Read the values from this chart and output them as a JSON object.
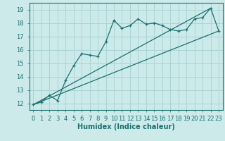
{
  "title": "",
  "xlabel": "Humidex (Indice chaleur)",
  "bg_color": "#cceaea",
  "grid_color": "#aad4d4",
  "line_color": "#1a7070",
  "spine_color": "#1a7070",
  "xlim": [
    -0.5,
    23.5
  ],
  "ylim": [
    11.5,
    19.5
  ],
  "xticks": [
    0,
    1,
    2,
    3,
    4,
    5,
    6,
    7,
    8,
    9,
    10,
    11,
    12,
    13,
    14,
    15,
    16,
    17,
    18,
    19,
    20,
    21,
    22,
    23
  ],
  "yticks": [
    12,
    13,
    14,
    15,
    16,
    17,
    18,
    19
  ],
  "main_x": [
    0,
    1,
    2,
    3,
    4,
    5,
    6,
    7,
    8,
    9,
    10,
    11,
    12,
    13,
    14,
    15,
    16,
    17,
    18,
    19,
    20,
    21,
    22,
    23
  ],
  "main_y": [
    11.9,
    12.1,
    12.6,
    12.2,
    13.7,
    14.8,
    15.7,
    15.6,
    15.5,
    16.6,
    18.2,
    17.6,
    17.8,
    18.3,
    17.9,
    18.0,
    17.8,
    17.5,
    17.4,
    17.5,
    18.3,
    18.4,
    19.1,
    17.4
  ],
  "line1_x": [
    0,
    23
  ],
  "line1_y": [
    11.9,
    17.4
  ],
  "line2_x": [
    0,
    22
  ],
  "line2_y": [
    11.9,
    19.1
  ],
  "xlabel_fontsize": 7.0,
  "tick_fontsize": 6.0,
  "linewidth": 0.9,
  "markersize": 3.5
}
